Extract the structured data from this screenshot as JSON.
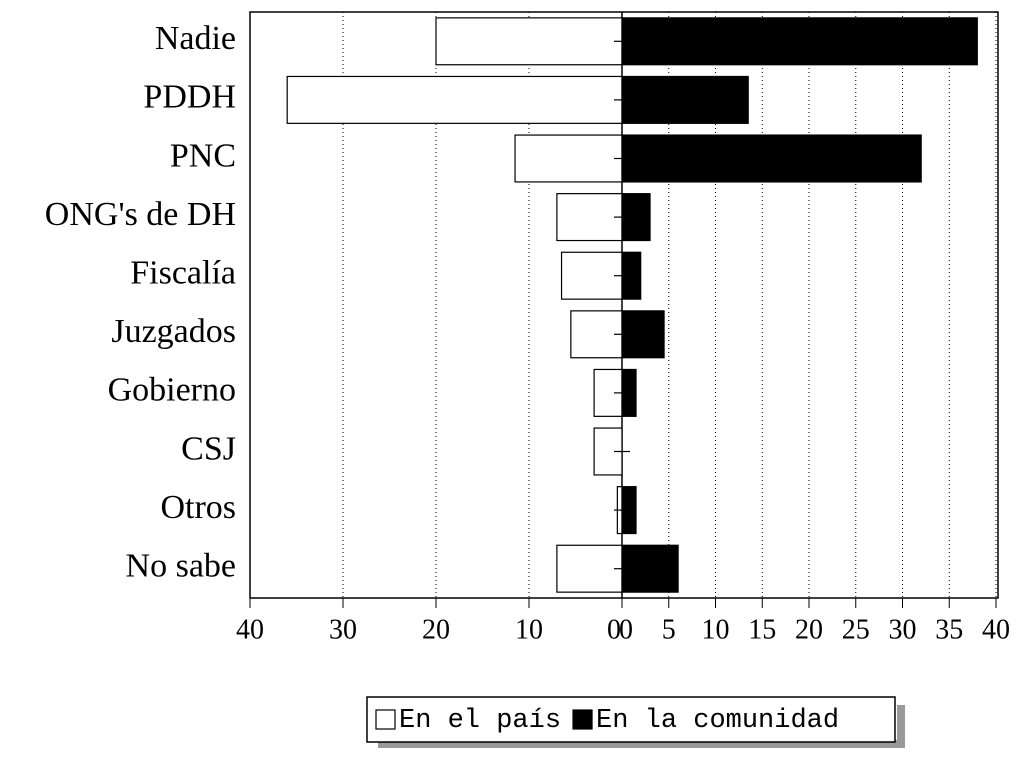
{
  "chart_data": {
    "type": "back-to-back-bar",
    "categories": [
      "Nadie",
      "PDDH",
      "PNC",
      "ONG's de DH",
      "Fiscalía",
      "Juzgados",
      "Gobierno",
      "CSJ",
      "Otros",
      "No sabe"
    ],
    "series": [
      {
        "name": "En el país",
        "color": "#ffffff",
        "axis": "x2",
        "values": [
          20,
          36,
          11.5,
          7,
          6.5,
          5.5,
          3,
          3,
          0.5,
          7
        ]
      },
      {
        "name": "En la comunidad",
        "color": "#000000",
        "values": [
          38,
          13.5,
          32,
          3,
          2,
          4.5,
          1.5,
          0,
          1.5,
          6
        ]
      }
    ],
    "xlim": [
      0,
      40
    ],
    "xticks": [
      0,
      5,
      10,
      15,
      20,
      25,
      30,
      35,
      40
    ],
    "x2lim": [
      0,
      40
    ],
    "x2ticks": [
      0,
      10,
      20,
      30,
      40
    ],
    "grid": true,
    "legend": "bottom"
  }
}
